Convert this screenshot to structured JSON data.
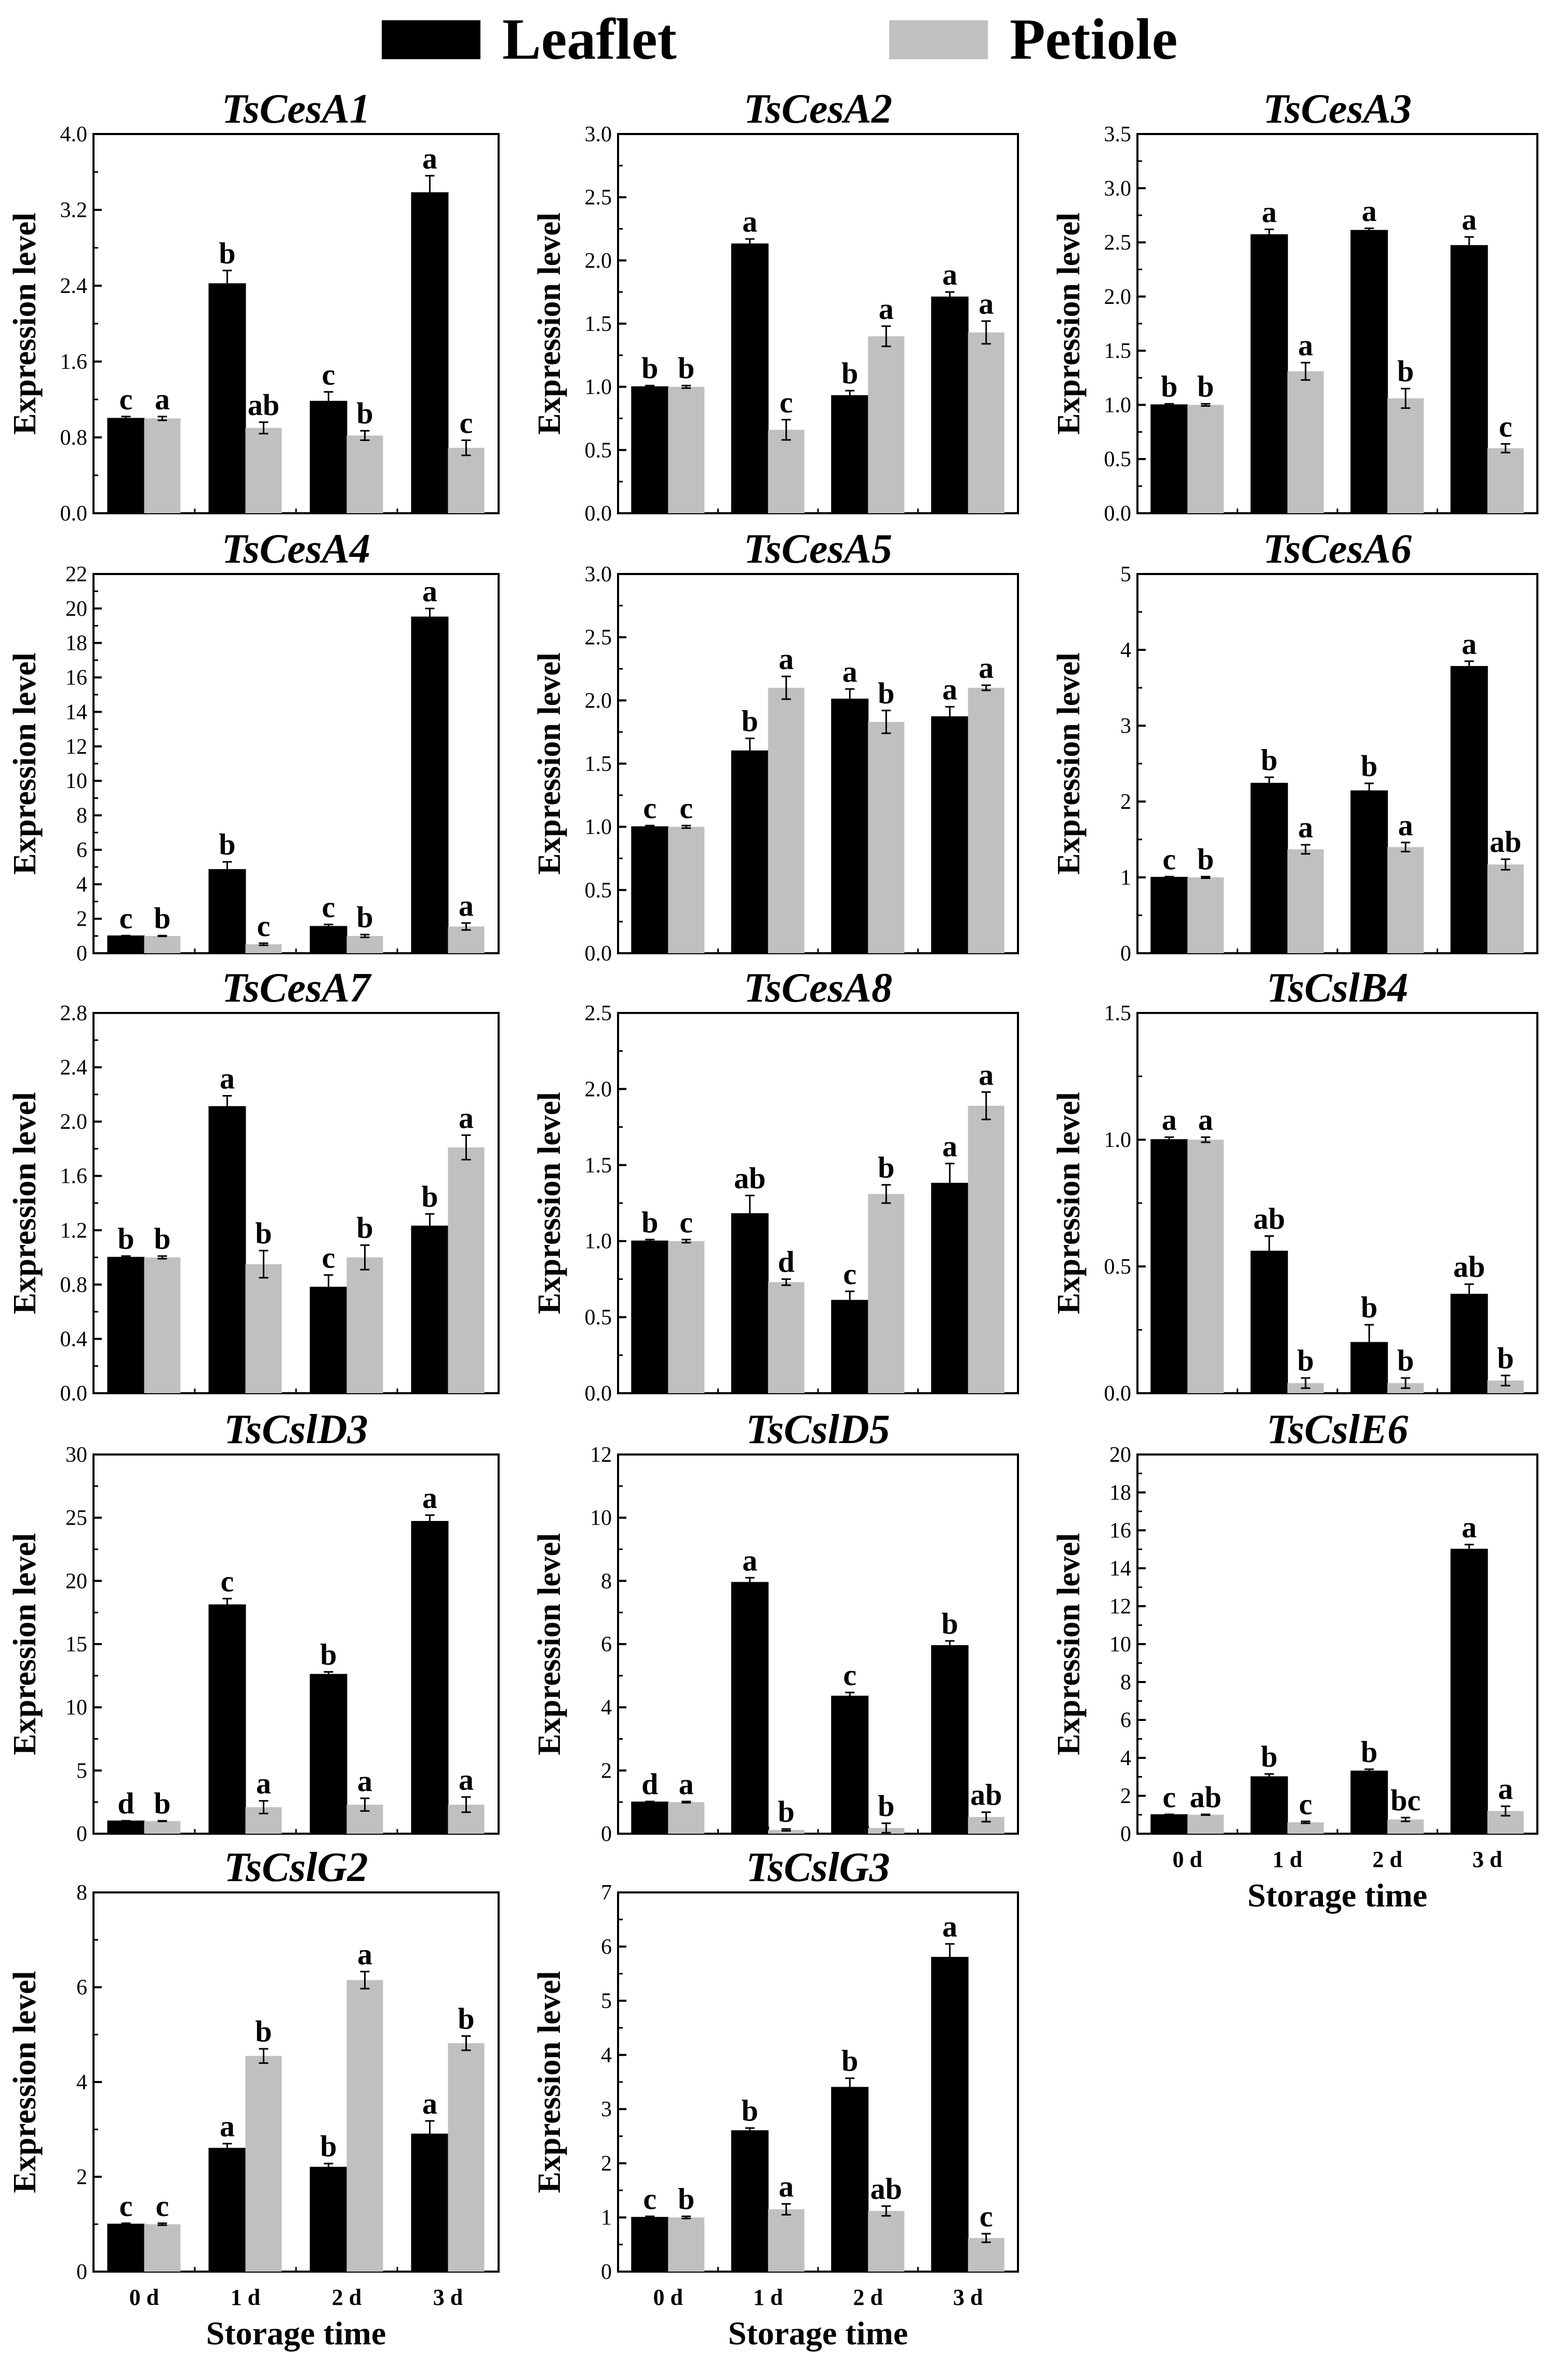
{
  "legend": {
    "leaflet": {
      "label": "Leaflet",
      "color": "#000000"
    },
    "petiole": {
      "label": "Petiole",
      "color": "#c0c0c0"
    }
  },
  "chart_data": [
    {
      "type": "bar",
      "title": "TsCesA1",
      "ylabel": "Expression level",
      "xlabel": "",
      "categories": [
        "0 d",
        "1 d",
        "2 d",
        "3 d"
      ],
      "ylim": [
        0,
        4.0
      ],
      "yticks": [
        "0.0",
        "0.8",
        "1.6",
        "2.4",
        "3.2",
        "4.0"
      ],
      "series": [
        {
          "name": "Leaflet",
          "values": [
            1.0,
            2.42,
            1.18,
            3.38
          ],
          "errors": [
            0.02,
            0.14,
            0.1,
            0.18
          ],
          "letters": [
            "c",
            "b",
            "c",
            "a"
          ]
        },
        {
          "name": "Petiole",
          "values": [
            1.0,
            0.9,
            0.82,
            0.69
          ],
          "errors": [
            0.02,
            0.06,
            0.05,
            0.08
          ],
          "letters": [
            "a",
            "ab",
            "b",
            "c"
          ]
        }
      ]
    },
    {
      "type": "bar",
      "title": "TsCesA2",
      "ylabel": "Expression level",
      "xlabel": "",
      "categories": [
        "0 d",
        "1 d",
        "2 d",
        "3 d"
      ],
      "ylim": [
        0,
        3.0
      ],
      "yticks": [
        "0.0",
        "0.5",
        "1.0",
        "1.5",
        "2.0",
        "2.5",
        "3.0"
      ],
      "series": [
        {
          "name": "Leaflet",
          "values": [
            1.0,
            2.13,
            0.93,
            1.71
          ],
          "errors": [
            0.01,
            0.04,
            0.04,
            0.04
          ],
          "letters": [
            "b",
            "a",
            "b",
            "a"
          ]
        },
        {
          "name": "Petiole",
          "values": [
            1.0,
            0.66,
            1.4,
            1.43
          ],
          "errors": [
            0.01,
            0.08,
            0.08,
            0.09
          ],
          "letters": [
            "b",
            "c",
            "a",
            "a"
          ]
        }
      ]
    },
    {
      "type": "bar",
      "title": "TsCesA3",
      "ylabel": "Expression level",
      "xlabel": "",
      "categories": [
        "0 d",
        "1 d",
        "2 d",
        "3 d"
      ],
      "ylim": [
        0,
        3.5
      ],
      "yticks": [
        "0.0",
        "0.5",
        "1.0",
        "1.5",
        "2.0",
        "2.5",
        "3.0",
        "3.5"
      ],
      "series": [
        {
          "name": "Leaflet",
          "values": [
            1.0,
            2.57,
            2.61,
            2.47
          ],
          "errors": [
            0.01,
            0.05,
            0.02,
            0.08
          ],
          "letters": [
            "b",
            "a",
            "a",
            "a"
          ]
        },
        {
          "name": "Petiole",
          "values": [
            1.0,
            1.31,
            1.06,
            0.6
          ],
          "errors": [
            0.01,
            0.08,
            0.09,
            0.04
          ],
          "letters": [
            "b",
            "a",
            "b",
            "c"
          ]
        }
      ]
    },
    {
      "type": "bar",
      "title": "TsCesA4",
      "ylabel": "Expression level",
      "xlabel": "",
      "categories": [
        "0 d",
        "1 d",
        "2 d",
        "3 d"
      ],
      "ylim": [
        0,
        22
      ],
      "yticks": [
        "0",
        "2",
        "4",
        "6",
        "8",
        "10",
        "12",
        "14",
        "16",
        "18",
        "20",
        "22"
      ],
      "series": [
        {
          "name": "Leaflet",
          "values": [
            1.0,
            4.85,
            1.55,
            19.5
          ],
          "errors": [
            0.02,
            0.45,
            0.12,
            0.5
          ],
          "letters": [
            "c",
            "b",
            "c",
            "a"
          ]
        },
        {
          "name": "Petiole",
          "values": [
            1.0,
            0.52,
            1.0,
            1.55
          ],
          "errors": [
            0.02,
            0.06,
            0.08,
            0.2
          ],
          "letters": [
            "b",
            "c",
            "b",
            "a"
          ]
        }
      ]
    },
    {
      "type": "bar",
      "title": "TsCesA5",
      "ylabel": "Expression level",
      "xlabel": "",
      "categories": [
        "0 d",
        "1 d",
        "2 d",
        "3 d"
      ],
      "ylim": [
        0,
        3.0
      ],
      "yticks": [
        "0.0",
        "0.5",
        "1.0",
        "1.5",
        "2.0",
        "2.5",
        "3.0"
      ],
      "series": [
        {
          "name": "Leaflet",
          "values": [
            1.0,
            1.6,
            2.01,
            1.87
          ],
          "errors": [
            0.01,
            0.1,
            0.08,
            0.08
          ],
          "letters": [
            "c",
            "b",
            "a",
            "a"
          ]
        },
        {
          "name": "Petiole",
          "values": [
            1.0,
            2.1,
            1.83,
            2.1
          ],
          "errors": [
            0.01,
            0.09,
            0.09,
            0.02
          ],
          "letters": [
            "c",
            "a",
            "b",
            "a"
          ]
        }
      ]
    },
    {
      "type": "bar",
      "title": "TsCesA6",
      "ylabel": "Expression level",
      "xlabel": "",
      "categories": [
        "0 d",
        "1 d",
        "2 d",
        "3 d"
      ],
      "ylim": [
        0,
        5
      ],
      "yticks": [
        "0",
        "1",
        "2",
        "3",
        "4",
        "5"
      ],
      "series": [
        {
          "name": "Leaflet",
          "values": [
            1.0,
            2.24,
            2.14,
            3.78
          ],
          "errors": [
            0.01,
            0.08,
            0.1,
            0.07
          ],
          "letters": [
            "c",
            "b",
            "b",
            "a"
          ]
        },
        {
          "name": "Petiole",
          "values": [
            1.0,
            1.37,
            1.4,
            1.17
          ],
          "errors": [
            0.01,
            0.06,
            0.06,
            0.07
          ],
          "letters": [
            "b",
            "a",
            "a",
            "ab"
          ]
        }
      ]
    },
    {
      "type": "bar",
      "title": "TsCesA7",
      "ylabel": "Expression level",
      "xlabel": "",
      "categories": [
        "0 d",
        "1 d",
        "2 d",
        "3 d"
      ],
      "ylim": [
        0,
        2.8
      ],
      "yticks": [
        "0.0",
        "0.4",
        "0.8",
        "1.2",
        "1.6",
        "2.0",
        "2.4",
        "2.8"
      ],
      "series": [
        {
          "name": "Leaflet",
          "values": [
            1.0,
            2.11,
            0.78,
            1.23
          ],
          "errors": [
            0.01,
            0.08,
            0.09,
            0.09
          ],
          "letters": [
            "b",
            "a",
            "c",
            "b"
          ]
        },
        {
          "name": "Petiole",
          "values": [
            1.0,
            0.95,
            1.0,
            1.81
          ],
          "errors": [
            0.01,
            0.1,
            0.09,
            0.09
          ],
          "letters": [
            "b",
            "b",
            "b",
            "a"
          ]
        }
      ]
    },
    {
      "type": "bar",
      "title": "TsCesA8",
      "ylabel": "Expression level",
      "xlabel": "",
      "categories": [
        "0 d",
        "1 d",
        "2 d",
        "3 d"
      ],
      "ylim": [
        0,
        2.5
      ],
      "yticks": [
        "0.0",
        "0.5",
        "1.0",
        "1.5",
        "2.0",
        "2.5"
      ],
      "series": [
        {
          "name": "Leaflet",
          "values": [
            1.0,
            1.18,
            0.61,
            1.38
          ],
          "errors": [
            0.01,
            0.12,
            0.06,
            0.13
          ],
          "letters": [
            "b",
            "ab",
            "c",
            "a"
          ]
        },
        {
          "name": "Petiole",
          "values": [
            1.0,
            0.73,
            1.31,
            1.89
          ],
          "errors": [
            0.01,
            0.02,
            0.06,
            0.09
          ],
          "letters": [
            "c",
            "d",
            "b",
            "a"
          ]
        }
      ]
    },
    {
      "type": "bar",
      "title": "TsCslB4",
      "ylabel": "Expression level",
      "xlabel": "",
      "categories": [
        "0 d",
        "1 d",
        "2 d",
        "3 d"
      ],
      "ylim": [
        0,
        1.5
      ],
      "yticks": [
        "0.0",
        "0.5",
        "1.0",
        "1.5"
      ],
      "series": [
        {
          "name": "Leaflet",
          "values": [
            1.0,
            0.56,
            0.2,
            0.39
          ],
          "errors": [
            0.01,
            0.06,
            0.07,
            0.04
          ],
          "letters": [
            "a",
            "ab",
            "b",
            "ab"
          ]
        },
        {
          "name": "Petiole",
          "values": [
            1.0,
            0.04,
            0.04,
            0.05
          ],
          "errors": [
            0.01,
            0.02,
            0.02,
            0.02
          ],
          "letters": [
            "a",
            "b",
            "b",
            "b"
          ]
        }
      ]
    },
    {
      "type": "bar",
      "title": "TsCslD3",
      "ylabel": "Expression level",
      "xlabel": "",
      "categories": [
        "0 d",
        "1 d",
        "2 d",
        "3 d"
      ],
      "ylim": [
        0,
        30
      ],
      "yticks": [
        "0",
        "5",
        "10",
        "15",
        "20",
        "25",
        "30"
      ],
      "series": [
        {
          "name": "Leaflet",
          "values": [
            1.0,
            18.1,
            12.6,
            24.7
          ],
          "errors": [
            0.02,
            0.5,
            0.2,
            0.5
          ],
          "letters": [
            "d",
            "c",
            "b",
            "a"
          ]
        },
        {
          "name": "Petiole",
          "values": [
            1.0,
            2.1,
            2.3,
            2.3
          ],
          "errors": [
            0.02,
            0.5,
            0.5,
            0.6
          ],
          "letters": [
            "b",
            "a",
            "a",
            "a"
          ]
        }
      ]
    },
    {
      "type": "bar",
      "title": "TsCslD5",
      "ylabel": "Expression level",
      "xlabel": "",
      "categories": [
        "0 d",
        "1 d",
        "2 d",
        "3 d"
      ],
      "ylim": [
        0,
        12
      ],
      "yticks": [
        "0",
        "2",
        "4",
        "6",
        "8",
        "10",
        "12"
      ],
      "series": [
        {
          "name": "Leaflet",
          "values": [
            1.0,
            7.95,
            4.35,
            5.95
          ],
          "errors": [
            0.02,
            0.15,
            0.12,
            0.15
          ],
          "letters": [
            "d",
            "a",
            "c",
            "b"
          ]
        },
        {
          "name": "Petiole",
          "values": [
            1.0,
            0.12,
            0.18,
            0.53
          ],
          "errors": [
            0.02,
            0.03,
            0.15,
            0.15
          ],
          "letters": [
            "a",
            "b",
            "b",
            "ab"
          ]
        }
      ]
    },
    {
      "type": "bar",
      "title": "TsCslE6",
      "ylabel": "Expression level",
      "xlabel": "Storage time",
      "categories": [
        "0 d",
        "1 d",
        "2 d",
        "3 d"
      ],
      "ylim": [
        0,
        20
      ],
      "yticks": [
        "0",
        "2",
        "4",
        "6",
        "8",
        "10",
        "12",
        "14",
        "16",
        "18",
        "20"
      ],
      "series": [
        {
          "name": "Leaflet",
          "values": [
            1.0,
            3.0,
            3.3,
            15.0
          ],
          "errors": [
            0.02,
            0.15,
            0.1,
            0.25
          ],
          "letters": [
            "c",
            "b",
            "b",
            "a"
          ]
        },
        {
          "name": "Petiole",
          "values": [
            1.0,
            0.6,
            0.75,
            1.2
          ],
          "errors": [
            0.02,
            0.05,
            0.1,
            0.25
          ],
          "letters": [
            "ab",
            "c",
            "bc",
            "a"
          ]
        }
      ]
    },
    {
      "type": "bar",
      "title": "TsCslG2",
      "ylabel": "Expression level",
      "xlabel": "Storage time",
      "categories": [
        "0 d",
        "1 d",
        "2 d",
        "3 d"
      ],
      "ylim": [
        0,
        8
      ],
      "yticks": [
        "0",
        "2",
        "4",
        "6",
        "8"
      ],
      "series": [
        {
          "name": "Leaflet",
          "values": [
            1.0,
            2.6,
            2.2,
            2.9
          ],
          "errors": [
            0.02,
            0.1,
            0.08,
            0.28
          ],
          "letters": [
            "c",
            "a",
            "b",
            "a"
          ]
        },
        {
          "name": "Petiole",
          "values": [
            1.0,
            4.55,
            6.15,
            4.82
          ],
          "errors": [
            0.02,
            0.15,
            0.18,
            0.15
          ],
          "letters": [
            "c",
            "b",
            "a",
            "b"
          ]
        }
      ]
    },
    {
      "type": "bar",
      "title": "TsCslG3",
      "ylabel": "Expression level",
      "xlabel": "Storage time",
      "categories": [
        "0 d",
        "1 d",
        "2 d",
        "3 d"
      ],
      "ylim": [
        0,
        7
      ],
      "yticks": [
        "0",
        "1",
        "2",
        "3",
        "4",
        "5",
        "6",
        "7"
      ],
      "series": [
        {
          "name": "Leaflet",
          "values": [
            1.0,
            2.6,
            3.4,
            5.8
          ],
          "errors": [
            0.02,
            0.05,
            0.17,
            0.25
          ],
          "letters": [
            "c",
            "b",
            "b",
            "a"
          ]
        },
        {
          "name": "Petiole",
          "values": [
            1.0,
            1.15,
            1.12,
            0.62
          ],
          "errors": [
            0.02,
            0.1,
            0.09,
            0.08
          ],
          "letters": [
            "b",
            "a",
            "ab",
            "c"
          ]
        }
      ]
    }
  ]
}
